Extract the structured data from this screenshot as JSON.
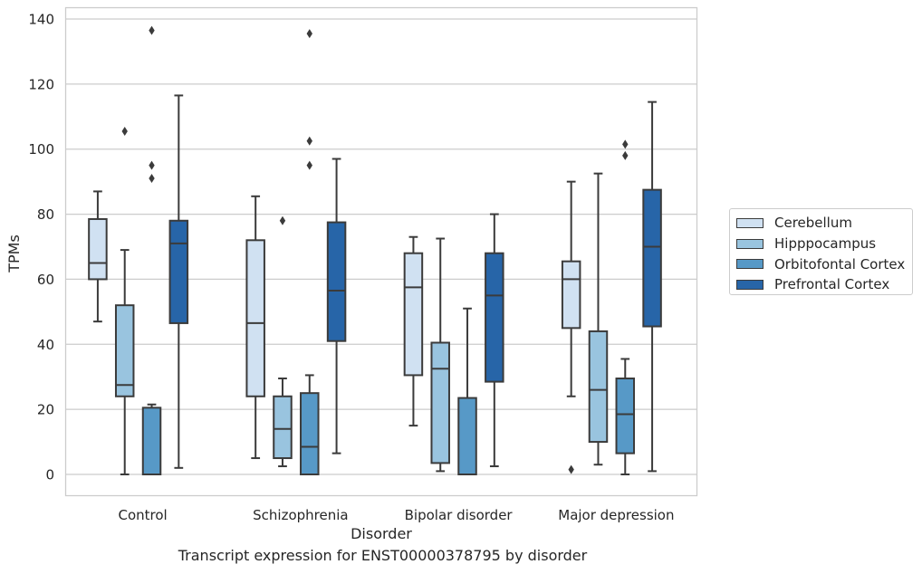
{
  "chart_data": {
    "type": "box",
    "title": "",
    "caption": "Transcript expression for ENST00000378795 by disorder",
    "xlabel": "Disorder",
    "ylabel": "TPMs",
    "ylim": [
      -6.5,
      143
    ],
    "yticks": [
      0,
      20,
      40,
      60,
      80,
      100,
      120,
      140
    ],
    "grid": true,
    "legend_position": "center-right",
    "categories": [
      "Control",
      "Schizophrenia",
      "Bipolar disorder",
      "Major depression"
    ],
    "series": [
      {
        "name": "Cerebellum",
        "color": "#d0e1f2",
        "boxes": [
          {
            "whisker_low": 47,
            "q1": 60,
            "median": 65,
            "q3": 78.5,
            "whisker_high": 87,
            "outliers": []
          },
          {
            "whisker_low": 5,
            "q1": 24,
            "median": 46.5,
            "q3": 72,
            "whisker_high": 85.5,
            "outliers": []
          },
          {
            "whisker_low": 15,
            "q1": 30.5,
            "median": 57.5,
            "q3": 68,
            "whisker_high": 73,
            "outliers": []
          },
          {
            "whisker_low": 24,
            "q1": 45,
            "median": 60,
            "q3": 65.5,
            "whisker_high": 90,
            "outliers": [
              1.5
            ]
          }
        ]
      },
      {
        "name": "Hipppocampus",
        "color": "#99c4df",
        "boxes": [
          {
            "whisker_low": 0,
            "q1": 24,
            "median": 27.5,
            "q3": 52,
            "whisker_high": 69,
            "outliers": [
              105.5
            ]
          },
          {
            "whisker_low": 2.5,
            "q1": 5,
            "median": 14,
            "q3": 24,
            "whisker_high": 29.5,
            "outliers": [
              78
            ]
          },
          {
            "whisker_low": 1,
            "q1": 3.5,
            "median": 32.5,
            "q3": 40.5,
            "whisker_high": 72.5,
            "outliers": []
          },
          {
            "whisker_low": 3,
            "q1": 10,
            "median": 26,
            "q3": 44,
            "whisker_high": 92.5,
            "outliers": []
          }
        ]
      },
      {
        "name": "Orbitofontal Cortex",
        "color": "#5799c7",
        "boxes": [
          {
            "whisker_low": 0,
            "q1": 0,
            "median": 0,
            "q3": 20.5,
            "whisker_high": 21.5,
            "outliers": [
              91,
              95,
              136.5
            ]
          },
          {
            "whisker_low": 0,
            "q1": 0,
            "median": 8.5,
            "q3": 25,
            "whisker_high": 30.5,
            "outliers": [
              95,
              102.5,
              135.5
            ]
          },
          {
            "whisker_low": 0,
            "q1": 0,
            "median": 0,
            "q3": 23.5,
            "whisker_high": 51,
            "outliers": []
          },
          {
            "whisker_low": 0,
            "q1": 6.5,
            "median": 18.5,
            "q3": 29.5,
            "whisker_high": 35.5,
            "outliers": [
              98,
              101.5
            ]
          }
        ]
      },
      {
        "name": "Prefrontal Cortex",
        "color": "#2765a8",
        "boxes": [
          {
            "whisker_low": 2,
            "q1": 46.5,
            "median": 71,
            "q3": 78,
            "whisker_high": 116.5,
            "outliers": []
          },
          {
            "whisker_low": 6.5,
            "q1": 41,
            "median": 56.5,
            "q3": 77.5,
            "whisker_high": 97,
            "outliers": []
          },
          {
            "whisker_low": 2.5,
            "q1": 28.5,
            "median": 55,
            "q3": 68,
            "whisker_high": 80,
            "outliers": []
          },
          {
            "whisker_low": 1,
            "q1": 45.5,
            "median": 70,
            "q3": 87.5,
            "whisker_high": 114.5,
            "outliers": []
          }
        ]
      }
    ]
  }
}
